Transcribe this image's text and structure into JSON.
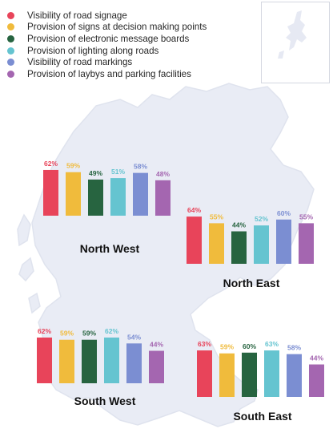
{
  "colors": {
    "map_fill": "#e9ecf5",
    "map_stroke": "#dfe3ee",
    "inset_fill": "#e6e9f3"
  },
  "legend": [
    {
      "label": "Visibility of road signage",
      "color": "#e8445a"
    },
    {
      "label": "Provision of signs at decision making points",
      "color": "#f0bb3c"
    },
    {
      "label": "Provision of electronic message boards",
      "color": "#276440"
    },
    {
      "label": "Provision of lighting along roads",
      "color": "#65c4d0"
    },
    {
      "label": "Visibility of road markings",
      "color": "#7b8ed2"
    },
    {
      "label": "Provision of laybys and parking facilities",
      "color": "#a466b0"
    }
  ],
  "chart_data": [
    {
      "type": "bar",
      "title": "North West",
      "categories": [
        "Visibility of road signage",
        "Provision of signs at decision making points",
        "Provision of electronic message boards",
        "Provision of lighting along roads",
        "Visibility of road markings",
        "Provision of laybys and parking facilities"
      ],
      "values": [
        62,
        59,
        49,
        51,
        58,
        48
      ],
      "labels": [
        "62%",
        "59%",
        "49%",
        "51%",
        "58%",
        "48%"
      ]
    },
    {
      "type": "bar",
      "title": "North East",
      "categories": [
        "Visibility of road signage",
        "Provision of signs at decision making points",
        "Provision of electronic message boards",
        "Provision of lighting along roads",
        "Visibility of road markings",
        "Provision of laybys and parking facilities"
      ],
      "values": [
        64,
        55,
        44,
        52,
        60,
        55
      ],
      "labels": [
        "64%",
        "55%",
        "44%",
        "52%",
        "60%",
        "55%"
      ]
    },
    {
      "type": "bar",
      "title": "South West",
      "categories": [
        "Visibility of road signage",
        "Provision of signs at decision making points",
        "Provision of electronic message boards",
        "Provision of lighting along roads",
        "Visibility of road markings",
        "Provision of laybys and parking facilities"
      ],
      "values": [
        62,
        59,
        59,
        62,
        54,
        44
      ],
      "labels": [
        "62%",
        "59%",
        "59%",
        "62%",
        "54%",
        "44%"
      ]
    },
    {
      "type": "bar",
      "title": "South East",
      "categories": [
        "Visibility of road signage",
        "Provision of signs at decision making points",
        "Provision of electronic message boards",
        "Provision of lighting along roads",
        "Visibility of road markings",
        "Provision of laybys and parking facilities"
      ],
      "values": [
        63,
        59,
        60,
        63,
        58,
        44
      ],
      "labels": [
        "63%",
        "59%",
        "60%",
        "63%",
        "58%",
        "44%"
      ]
    }
  ]
}
